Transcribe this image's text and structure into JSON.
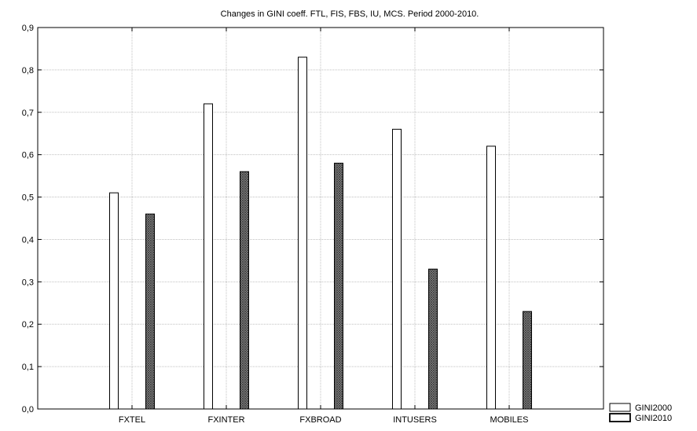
{
  "chart_data": {
    "type": "bar",
    "title": "Changes in GINI coeff. FTL, FIS, FBS, IU, MCS. Period 2000-2010.",
    "xlabel": "",
    "ylabel": "",
    "categories": [
      "FXTEL",
      "FXINTER",
      "FXBROAD",
      "INTUSERS",
      "MOBILES"
    ],
    "series": [
      {
        "name": "GINI2000",
        "values": [
          0.51,
          0.72,
          0.83,
          0.66,
          0.62
        ],
        "color": "#ffffff",
        "pattern": "none"
      },
      {
        "name": "GINI2010",
        "values": [
          0.46,
          0.56,
          0.58,
          0.33,
          0.23
        ],
        "color": "#808080",
        "pattern": "crosshatch"
      }
    ],
    "ylim": [
      0,
      0.9
    ],
    "yticks": [
      "0,0",
      "0,1",
      "0,2",
      "0,3",
      "0,4",
      "0,5",
      "0,6",
      "0,7",
      "0,8",
      "0,9"
    ],
    "grid": true,
    "legend_position": "bottom-right"
  }
}
